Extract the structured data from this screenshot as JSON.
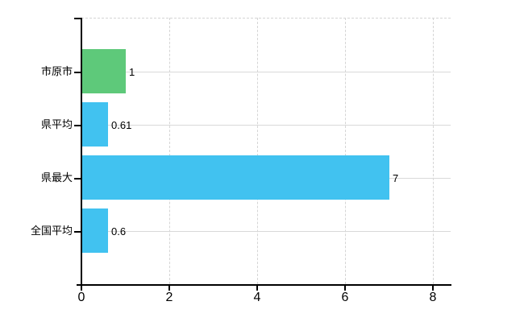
{
  "chart_data": {
    "type": "bar",
    "orientation": "horizontal",
    "title": "",
    "xlabel": "",
    "ylabel": "",
    "categories": [
      "市原市",
      "県平均",
      "県最大",
      "全国平均"
    ],
    "values": [
      1,
      0.61,
      7,
      0.6
    ],
    "value_labels": [
      "1",
      "0.61",
      "7",
      "0.6"
    ],
    "bar_colors": [
      "#5ec97a",
      "#41c2f0",
      "#41c2f0",
      "#41c2f0"
    ],
    "xlim": [
      0,
      8
    ],
    "x_ticks": [
      0,
      2,
      4,
      6,
      8
    ],
    "x_tick_labels": [
      "0",
      "2",
      "4",
      "6",
      "8"
    ],
    "grid": true,
    "legend": false
  },
  "colors": {
    "background": "#ffffff",
    "axis": "#000000",
    "gridline_horizontal": "#d9d9d9",
    "gridline_vertical_dashed": "#d5d5d5",
    "text": "#000000"
  }
}
